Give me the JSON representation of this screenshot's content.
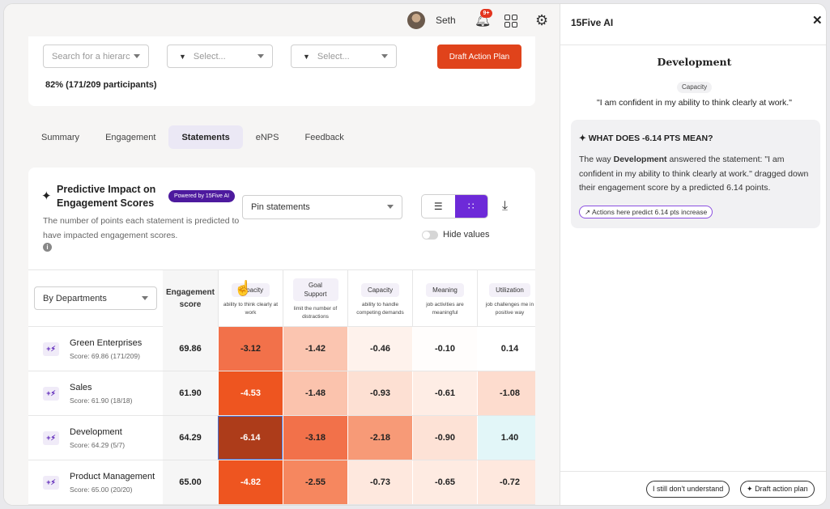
{
  "header": {
    "user_name": "Seth",
    "notifications_badge": "9+"
  },
  "filters": {
    "hierarchy_placeholder": "Search for a hierarc",
    "select1_placeholder": "Select...",
    "select2_placeholder": "Select...",
    "draft_button": "Draft Action Plan",
    "participants": "82% (171/209 participants)"
  },
  "tabs": [
    "Summary",
    "Engagement",
    "Statements",
    "eNPS",
    "Feedback"
  ],
  "impact": {
    "title": "Predictive Impact on Engagement Scores",
    "powered": "Powered by 15Five AI",
    "description": "The number of points each statement is predicted to have impacted engagement scores.",
    "pin_select": "Pin statements",
    "hide_values": "Hide values",
    "group_select": "By Departments",
    "engagement_header": "Engagement score"
  },
  "columns": [
    {
      "tag": "Capacity",
      "sub": "ability to think clearly at work"
    },
    {
      "tag": "Goal Support",
      "sub": "limit the number of distractions"
    },
    {
      "tag": "Capacity",
      "sub": "ability to handle competing demands"
    },
    {
      "tag": "Meaning",
      "sub": "job activities are meaningful"
    },
    {
      "tag": "Utilization",
      "sub": "job challenges me in positive way"
    }
  ],
  "rows": [
    {
      "name": "Green Enterprises",
      "score": "Score: 69.86 (171/209)",
      "engagement": "69.86",
      "cells": [
        {
          "value": "-3.12",
          "bg": "#f2714a",
          "fg": "#222"
        },
        {
          "value": "-1.42",
          "bg": "#fbc5b0",
          "fg": "#222"
        },
        {
          "value": "-0.46",
          "bg": "#fef2ec",
          "fg": "#222"
        },
        {
          "value": "-0.10",
          "bg": "#fffdfc",
          "fg": "#222"
        },
        {
          "value": "0.14",
          "bg": "#ffffff",
          "fg": "#222"
        }
      ]
    },
    {
      "name": "Sales",
      "score": "Score: 61.90 (18/18)",
      "engagement": "61.90",
      "cells": [
        {
          "value": "-4.53",
          "bg": "#ee5520",
          "fg": "#fff"
        },
        {
          "value": "-1.48",
          "bg": "#fbc3ad",
          "fg": "#222"
        },
        {
          "value": "-0.93",
          "bg": "#fde0d3",
          "fg": "#222"
        },
        {
          "value": "-0.61",
          "bg": "#feede5",
          "fg": "#222"
        },
        {
          "value": "-1.08",
          "bg": "#fddcce",
          "fg": "#222"
        }
      ]
    },
    {
      "name": "Development",
      "score": "Score: 64.29 (5/7)",
      "engagement": "64.29",
      "cells": [
        {
          "value": "-6.14",
          "bg": "#ad3c1a",
          "fg": "#fff"
        },
        {
          "value": "-3.18",
          "bg": "#f2714a",
          "fg": "#222"
        },
        {
          "value": "-2.18",
          "bg": "#f79a77",
          "fg": "#222"
        },
        {
          "value": "-0.90",
          "bg": "#fde2d6",
          "fg": "#222"
        },
        {
          "value": "1.40",
          "bg": "#e2f6f8",
          "fg": "#222"
        }
      ]
    },
    {
      "name": "Product Management",
      "score": "Score: 65.00 (20/20)",
      "engagement": "65.00",
      "cells": [
        {
          "value": "-4.82",
          "bg": "#ee5520",
          "fg": "#fff"
        },
        {
          "value": "-2.55",
          "bg": "#f6875f",
          "fg": "#222"
        },
        {
          "value": "-0.73",
          "bg": "#fee8de",
          "fg": "#222"
        },
        {
          "value": "-0.65",
          "bg": "#feebe2",
          "fg": "#222"
        },
        {
          "value": "-0.72",
          "bg": "#fee8de",
          "fg": "#222"
        }
      ]
    }
  ],
  "side": {
    "title": "15Five AI",
    "department": "Development",
    "tag": "Capacity",
    "quote": "\"I am confident in my ability to think clearly at work.\"",
    "explain_head": "WHAT DOES -6.14 PTS MEAN?",
    "explain_pre": "The way ",
    "explain_dept": "Development",
    "explain_post": " answered the statement: \"I am confident in my ability to think clearly at work.\" dragged down their engagement score by a predicted 6.14 points.",
    "predict_pill": "Actions here predict 6.14 pts increase",
    "btn_understand": "I still don't understand",
    "btn_draft": "Draft action plan"
  }
}
